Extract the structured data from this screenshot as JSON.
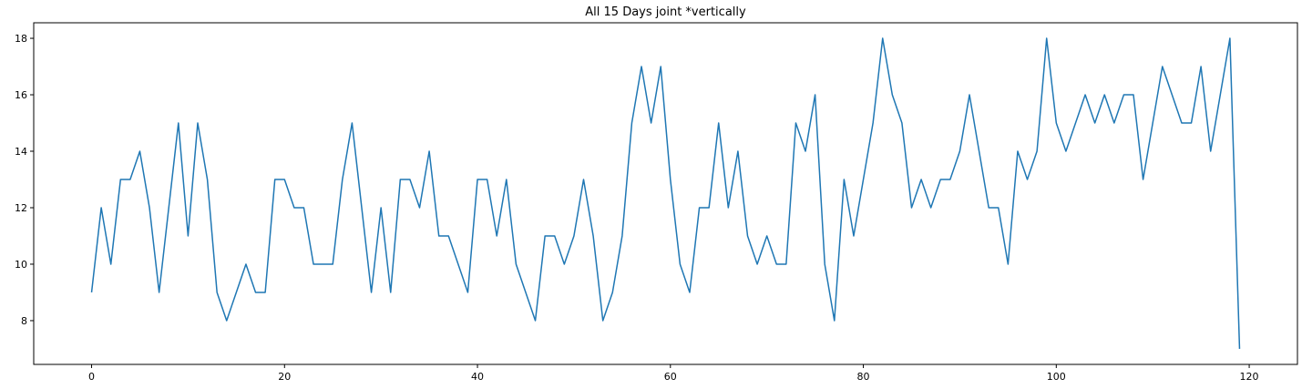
{
  "chart_data": {
    "type": "line",
    "title": "All 15 Days joint *vertically",
    "xlabel": "",
    "ylabel": "",
    "xlim": [
      -6,
      125
    ],
    "ylim": [
      6.45,
      18.55
    ],
    "xticks": [
      0,
      20,
      40,
      60,
      80,
      100,
      120
    ],
    "yticks": [
      8,
      10,
      12,
      14,
      16,
      18
    ],
    "grid": false,
    "line_color": "#1f77b4",
    "x": [
      0,
      1,
      2,
      3,
      4,
      5,
      6,
      7,
      8,
      9,
      10,
      11,
      12,
      13,
      14,
      15,
      16,
      17,
      18,
      19,
      20,
      21,
      22,
      23,
      24,
      25,
      26,
      27,
      28,
      29,
      30,
      31,
      32,
      33,
      34,
      35,
      36,
      37,
      38,
      39,
      40,
      41,
      42,
      43,
      44,
      45,
      46,
      47,
      48,
      49,
      50,
      51,
      52,
      53,
      54,
      55,
      56,
      57,
      58,
      59,
      60,
      61,
      62,
      63,
      64,
      65,
      66,
      67,
      68,
      69,
      70,
      71,
      72,
      73,
      74,
      75,
      76,
      77,
      78,
      79,
      80,
      81,
      82,
      83,
      84,
      85,
      86,
      87,
      88,
      89,
      90,
      91,
      92,
      93,
      94,
      95,
      96,
      97,
      98,
      99,
      100,
      101,
      102,
      103,
      104,
      105,
      106,
      107,
      108,
      109,
      110,
      111,
      112,
      113,
      114,
      115,
      116,
      117,
      118,
      119
    ],
    "y": [
      9,
      12,
      10,
      13,
      13,
      14,
      12,
      9,
      12,
      15,
      11,
      15,
      13,
      9,
      8,
      9,
      10,
      9,
      9,
      13,
      13,
      12,
      12,
      10,
      10,
      10,
      13,
      15,
      12,
      9,
      12,
      9,
      13,
      13,
      12,
      14,
      11,
      11,
      10,
      9,
      13,
      13,
      11,
      13,
      10,
      9,
      8,
      11,
      11,
      10,
      11,
      13,
      11,
      8,
      9,
      11,
      15,
      17,
      15,
      17,
      13,
      10,
      9,
      12,
      12,
      15,
      12,
      14,
      11,
      10,
      11,
      10,
      10,
      15,
      14,
      16,
      10,
      8,
      13,
      11,
      13,
      15,
      18,
      16,
      15,
      12,
      13,
      12,
      13,
      13,
      14,
      16,
      14,
      12,
      12,
      10,
      14,
      13,
      14,
      18,
      15,
      14,
      15,
      16,
      15,
      16,
      15,
      16,
      16,
      13,
      15,
      17,
      16,
      15,
      15,
      17,
      14,
      16,
      18,
      7
    ]
  }
}
